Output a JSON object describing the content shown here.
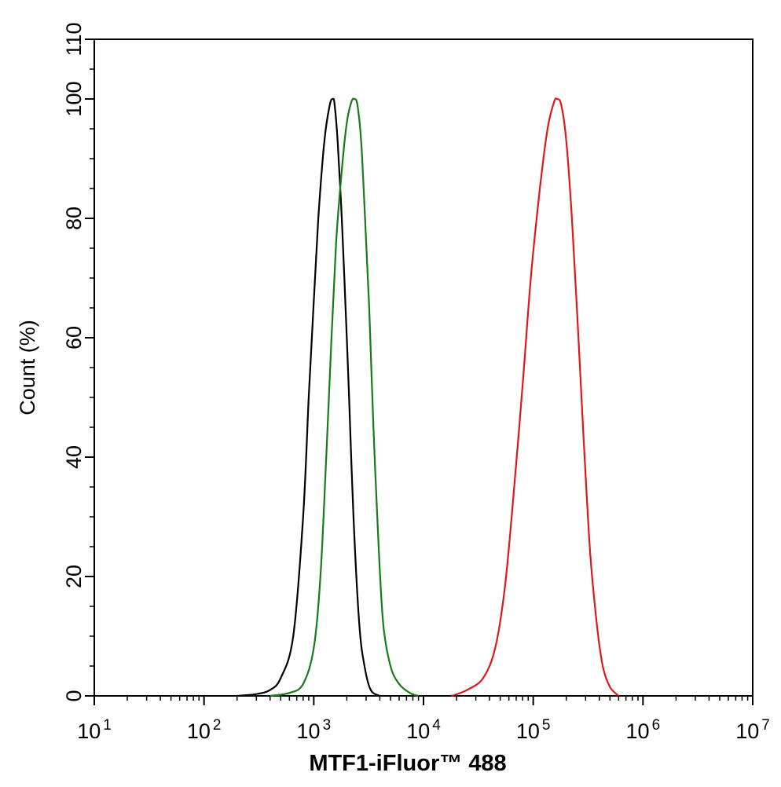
{
  "chart_data": {
    "type": "line",
    "title": "",
    "xlabel": "MTF1-iFluor™ 488",
    "ylabel": "Count (%)",
    "xscale": "log",
    "xlim": [
      10,
      10000000
    ],
    "ylim": [
      0,
      110
    ],
    "x_ticks": [
      {
        "base": "10",
        "exp": "1"
      },
      {
        "base": "10",
        "exp": "2"
      },
      {
        "base": "10",
        "exp": "3"
      },
      {
        "base": "10",
        "exp": "4"
      },
      {
        "base": "10",
        "exp": "5"
      },
      {
        "base": "10",
        "exp": "6"
      },
      {
        "base": "10",
        "exp": "7"
      }
    ],
    "y_ticks": [
      "0",
      "20",
      "40",
      "60",
      "80",
      "100",
      "110"
    ],
    "grid": false,
    "legend": "none",
    "series": [
      {
        "color": "#000000",
        "points": [
          [
            200,
            0
          ],
          [
            300,
            0.3
          ],
          [
            400,
            1
          ],
          [
            500,
            3
          ],
          [
            650,
            10
          ],
          [
            800,
            30
          ],
          [
            900,
            50
          ],
          [
            1000,
            66
          ],
          [
            1100,
            80
          ],
          [
            1250,
            93
          ],
          [
            1400,
            99
          ],
          [
            1500,
            100
          ],
          [
            1550,
            99
          ],
          [
            1650,
            93
          ],
          [
            1800,
            80
          ],
          [
            1950,
            65
          ],
          [
            2100,
            50
          ],
          [
            2300,
            30
          ],
          [
            2600,
            12
          ],
          [
            2900,
            5
          ],
          [
            3300,
            1
          ],
          [
            4000,
            0
          ]
        ]
      },
      {
        "color": "#1a7a1a",
        "points": [
          [
            400,
            0
          ],
          [
            600,
            0.5
          ],
          [
            800,
            2
          ],
          [
            1000,
            8
          ],
          [
            1150,
            20
          ],
          [
            1300,
            40
          ],
          [
            1450,
            60
          ],
          [
            1600,
            76
          ],
          [
            1800,
            88
          ],
          [
            2000,
            96
          ],
          [
            2200,
            99.5
          ],
          [
            2350,
            100
          ],
          [
            2500,
            99
          ],
          [
            2700,
            93
          ],
          [
            2900,
            82
          ],
          [
            3200,
            65
          ],
          [
            3500,
            45
          ],
          [
            3900,
            25
          ],
          [
            4300,
            12
          ],
          [
            5000,
            5
          ],
          [
            6000,
            2
          ],
          [
            7500,
            0.5
          ],
          [
            9000,
            0
          ]
        ]
      },
      {
        "color": "#e01818",
        "points": [
          [
            18000,
            0
          ],
          [
            25000,
            1
          ],
          [
            35000,
            3
          ],
          [
            45000,
            8
          ],
          [
            55000,
            18
          ],
          [
            65000,
            32
          ],
          [
            80000,
            52
          ],
          [
            95000,
            70
          ],
          [
            115000,
            85
          ],
          [
            135000,
            95
          ],
          [
            155000,
            99.5
          ],
          [
            165000,
            100
          ],
          [
            180000,
            99
          ],
          [
            200000,
            93
          ],
          [
            225000,
            80
          ],
          [
            255000,
            62
          ],
          [
            290000,
            42
          ],
          [
            330000,
            24
          ],
          [
            380000,
            12
          ],
          [
            430000,
            5
          ],
          [
            500000,
            1.5
          ],
          [
            600000,
            0
          ]
        ]
      }
    ]
  }
}
